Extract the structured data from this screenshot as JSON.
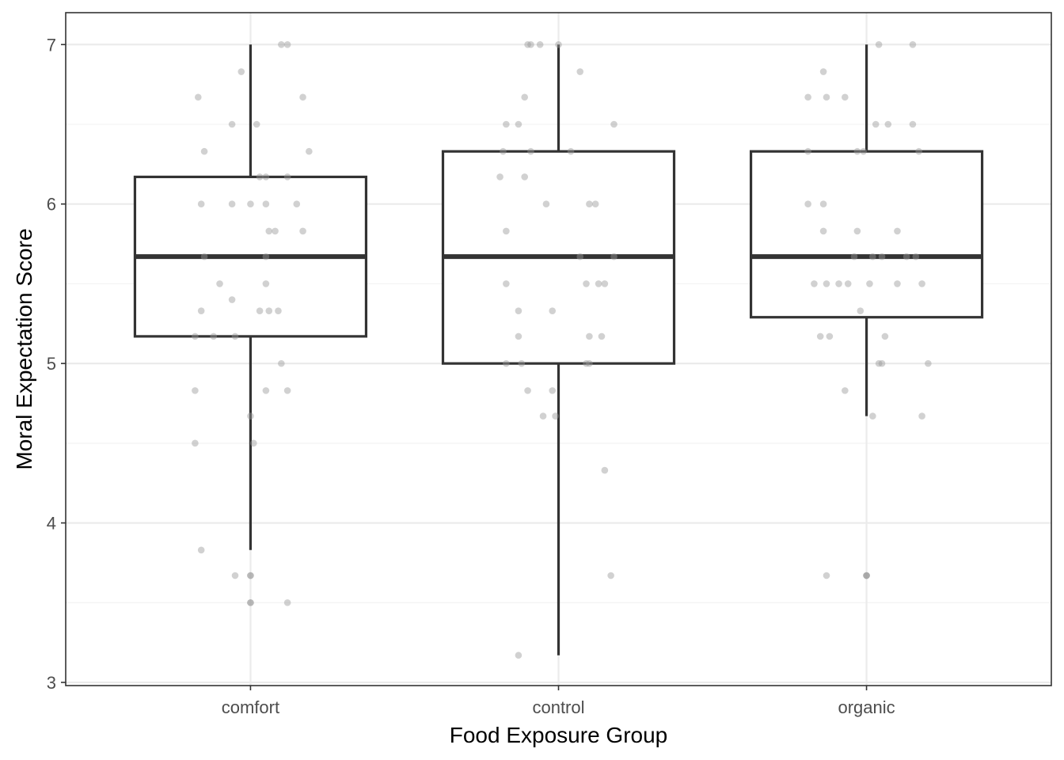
{
  "chart_data": {
    "type": "box",
    "title": "",
    "xlabel": "Food Exposure Group",
    "ylabel": "Moral Expectation Score",
    "categories": [
      "comfort",
      "control",
      "organic"
    ],
    "ylim": [
      2.98,
      7.2
    ],
    "yticks": [
      3,
      4,
      5,
      6,
      7
    ],
    "y_minor_ticks": [
      3.5,
      4.5,
      5.5,
      6.5
    ],
    "grid": true,
    "legend": "none",
    "boxes": [
      {
        "category": "comfort",
        "lower_whisker": 3.83,
        "q1": 5.17,
        "median": 5.67,
        "q3": 6.17,
        "upper_whisker": 7.0
      },
      {
        "category": "control",
        "lower_whisker": 3.17,
        "q1": 5.0,
        "median": 5.67,
        "q3": 6.33,
        "upper_whisker": 7.0
      },
      {
        "category": "organic",
        "lower_whisker": 4.67,
        "q1": 5.29,
        "median": 5.67,
        "q3": 6.33,
        "upper_whisker": 7.0
      }
    ],
    "points": [
      {
        "group": "comfort",
        "jitter": 0.1,
        "y": 7.0
      },
      {
        "group": "comfort",
        "jitter": 0.12,
        "y": 7.0
      },
      {
        "group": "comfort",
        "jitter": -0.03,
        "y": 6.83
      },
      {
        "group": "comfort",
        "jitter": -0.17,
        "y": 6.67
      },
      {
        "group": "comfort",
        "jitter": 0.17,
        "y": 6.67
      },
      {
        "group": "comfort",
        "jitter": -0.06,
        "y": 6.5
      },
      {
        "group": "comfort",
        "jitter": 0.02,
        "y": 6.5
      },
      {
        "group": "comfort",
        "jitter": -0.15,
        "y": 6.33
      },
      {
        "group": "comfort",
        "jitter": 0.19,
        "y": 6.33
      },
      {
        "group": "comfort",
        "jitter": 0.03,
        "y": 6.17
      },
      {
        "group": "comfort",
        "jitter": 0.05,
        "y": 6.17
      },
      {
        "group": "comfort",
        "jitter": 0.12,
        "y": 6.17
      },
      {
        "group": "comfort",
        "jitter": -0.16,
        "y": 6.0
      },
      {
        "group": "comfort",
        "jitter": -0.06,
        "y": 6.0
      },
      {
        "group": "comfort",
        "jitter": 0.0,
        "y": 6.0
      },
      {
        "group": "comfort",
        "jitter": 0.05,
        "y": 6.0
      },
      {
        "group": "comfort",
        "jitter": 0.15,
        "y": 6.0
      },
      {
        "group": "comfort",
        "jitter": 0.06,
        "y": 5.83
      },
      {
        "group": "comfort",
        "jitter": 0.08,
        "y": 5.83
      },
      {
        "group": "comfort",
        "jitter": 0.17,
        "y": 5.83
      },
      {
        "group": "comfort",
        "jitter": -0.15,
        "y": 5.67
      },
      {
        "group": "comfort",
        "jitter": 0.05,
        "y": 5.67
      },
      {
        "group": "comfort",
        "jitter": -0.1,
        "y": 5.5
      },
      {
        "group": "comfort",
        "jitter": 0.05,
        "y": 5.5
      },
      {
        "group": "comfort",
        "jitter": -0.06,
        "y": 5.4
      },
      {
        "group": "comfort",
        "jitter": -0.16,
        "y": 5.33
      },
      {
        "group": "comfort",
        "jitter": 0.03,
        "y": 5.33
      },
      {
        "group": "comfort",
        "jitter": 0.06,
        "y": 5.33
      },
      {
        "group": "comfort",
        "jitter": 0.09,
        "y": 5.33
      },
      {
        "group": "comfort",
        "jitter": -0.18,
        "y": 5.17
      },
      {
        "group": "comfort",
        "jitter": -0.12,
        "y": 5.17
      },
      {
        "group": "comfort",
        "jitter": -0.05,
        "y": 5.17
      },
      {
        "group": "comfort",
        "jitter": 0.1,
        "y": 5.0
      },
      {
        "group": "comfort",
        "jitter": -0.18,
        "y": 4.83
      },
      {
        "group": "comfort",
        "jitter": 0.05,
        "y": 4.83
      },
      {
        "group": "comfort",
        "jitter": 0.12,
        "y": 4.83
      },
      {
        "group": "comfort",
        "jitter": 0.0,
        "y": 4.67
      },
      {
        "group": "comfort",
        "jitter": -0.18,
        "y": 4.5
      },
      {
        "group": "comfort",
        "jitter": 0.01,
        "y": 4.5
      },
      {
        "group": "comfort",
        "jitter": -0.16,
        "y": 3.83
      },
      {
        "group": "comfort",
        "jitter": -0.05,
        "y": 3.67
      },
      {
        "group": "comfort",
        "jitter": 0.0,
        "y": 3.67
      },
      {
        "group": "comfort",
        "jitter": 0.0,
        "y": 3.67
      },
      {
        "group": "comfort",
        "jitter": 0.0,
        "y": 3.5
      },
      {
        "group": "comfort",
        "jitter": 0.0,
        "y": 3.5
      },
      {
        "group": "comfort",
        "jitter": 0.12,
        "y": 3.5
      },
      {
        "group": "control",
        "jitter": -0.1,
        "y": 7.0
      },
      {
        "group": "control",
        "jitter": -0.09,
        "y": 7.0
      },
      {
        "group": "control",
        "jitter": -0.06,
        "y": 7.0
      },
      {
        "group": "control",
        "jitter": 0.0,
        "y": 7.0
      },
      {
        "group": "control",
        "jitter": 0.07,
        "y": 6.83
      },
      {
        "group": "control",
        "jitter": -0.11,
        "y": 6.67
      },
      {
        "group": "control",
        "jitter": -0.17,
        "y": 6.5
      },
      {
        "group": "control",
        "jitter": -0.13,
        "y": 6.5
      },
      {
        "group": "control",
        "jitter": 0.18,
        "y": 6.5
      },
      {
        "group": "control",
        "jitter": -0.18,
        "y": 6.33
      },
      {
        "group": "control",
        "jitter": -0.09,
        "y": 6.33
      },
      {
        "group": "control",
        "jitter": 0.04,
        "y": 6.33
      },
      {
        "group": "control",
        "jitter": -0.19,
        "y": 6.17
      },
      {
        "group": "control",
        "jitter": -0.11,
        "y": 6.17
      },
      {
        "group": "control",
        "jitter": -0.04,
        "y": 6.0
      },
      {
        "group": "control",
        "jitter": 0.1,
        "y": 6.0
      },
      {
        "group": "control",
        "jitter": 0.12,
        "y": 6.0
      },
      {
        "group": "control",
        "jitter": -0.17,
        "y": 5.83
      },
      {
        "group": "control",
        "jitter": 0.07,
        "y": 5.67
      },
      {
        "group": "control",
        "jitter": 0.18,
        "y": 5.67
      },
      {
        "group": "control",
        "jitter": -0.17,
        "y": 5.5
      },
      {
        "group": "control",
        "jitter": 0.09,
        "y": 5.5
      },
      {
        "group": "control",
        "jitter": 0.13,
        "y": 5.5
      },
      {
        "group": "control",
        "jitter": 0.15,
        "y": 5.5
      },
      {
        "group": "control",
        "jitter": -0.13,
        "y": 5.33
      },
      {
        "group": "control",
        "jitter": -0.02,
        "y": 5.33
      },
      {
        "group": "control",
        "jitter": -0.13,
        "y": 5.17
      },
      {
        "group": "control",
        "jitter": 0.1,
        "y": 5.17
      },
      {
        "group": "control",
        "jitter": 0.14,
        "y": 5.17
      },
      {
        "group": "control",
        "jitter": -0.17,
        "y": 5.0
      },
      {
        "group": "control",
        "jitter": -0.12,
        "y": 5.0
      },
      {
        "group": "control",
        "jitter": 0.09,
        "y": 5.0
      },
      {
        "group": "control",
        "jitter": 0.1,
        "y": 5.0
      },
      {
        "group": "control",
        "jitter": -0.1,
        "y": 4.83
      },
      {
        "group": "control",
        "jitter": -0.02,
        "y": 4.83
      },
      {
        "group": "control",
        "jitter": -0.05,
        "y": 4.67
      },
      {
        "group": "control",
        "jitter": -0.01,
        "y": 4.67
      },
      {
        "group": "control",
        "jitter": 0.15,
        "y": 4.33
      },
      {
        "group": "control",
        "jitter": 0.17,
        "y": 3.67
      },
      {
        "group": "control",
        "jitter": -0.13,
        "y": 3.17
      },
      {
        "group": "organic",
        "jitter": 0.04,
        "y": 7.0
      },
      {
        "group": "organic",
        "jitter": 0.15,
        "y": 7.0
      },
      {
        "group": "organic",
        "jitter": -0.14,
        "y": 6.83
      },
      {
        "group": "organic",
        "jitter": -0.19,
        "y": 6.67
      },
      {
        "group": "organic",
        "jitter": -0.13,
        "y": 6.67
      },
      {
        "group": "organic",
        "jitter": -0.07,
        "y": 6.67
      },
      {
        "group": "organic",
        "jitter": 0.03,
        "y": 6.5
      },
      {
        "group": "organic",
        "jitter": 0.07,
        "y": 6.5
      },
      {
        "group": "organic",
        "jitter": 0.15,
        "y": 6.5
      },
      {
        "group": "organic",
        "jitter": -0.19,
        "y": 6.33
      },
      {
        "group": "organic",
        "jitter": -0.03,
        "y": 6.33
      },
      {
        "group": "organic",
        "jitter": -0.01,
        "y": 6.33
      },
      {
        "group": "organic",
        "jitter": 0.17,
        "y": 6.33
      },
      {
        "group": "organic",
        "jitter": -0.19,
        "y": 6.0
      },
      {
        "group": "organic",
        "jitter": -0.14,
        "y": 6.0
      },
      {
        "group": "organic",
        "jitter": -0.14,
        "y": 5.83
      },
      {
        "group": "organic",
        "jitter": -0.03,
        "y": 5.83
      },
      {
        "group": "organic",
        "jitter": 0.1,
        "y": 5.83
      },
      {
        "group": "organic",
        "jitter": -0.04,
        "y": 5.67
      },
      {
        "group": "organic",
        "jitter": 0.02,
        "y": 5.67
      },
      {
        "group": "organic",
        "jitter": 0.05,
        "y": 5.67
      },
      {
        "group": "organic",
        "jitter": 0.13,
        "y": 5.67
      },
      {
        "group": "organic",
        "jitter": 0.16,
        "y": 5.67
      },
      {
        "group": "organic",
        "jitter": -0.17,
        "y": 5.5
      },
      {
        "group": "organic",
        "jitter": -0.13,
        "y": 5.5
      },
      {
        "group": "organic",
        "jitter": -0.09,
        "y": 5.5
      },
      {
        "group": "organic",
        "jitter": -0.06,
        "y": 5.5
      },
      {
        "group": "organic",
        "jitter": 0.01,
        "y": 5.5
      },
      {
        "group": "organic",
        "jitter": 0.1,
        "y": 5.5
      },
      {
        "group": "organic",
        "jitter": 0.18,
        "y": 5.5
      },
      {
        "group": "organic",
        "jitter": -0.02,
        "y": 5.33
      },
      {
        "group": "organic",
        "jitter": -0.15,
        "y": 5.17
      },
      {
        "group": "organic",
        "jitter": -0.12,
        "y": 5.17
      },
      {
        "group": "organic",
        "jitter": 0.06,
        "y": 5.17
      },
      {
        "group": "organic",
        "jitter": 0.04,
        "y": 5.0
      },
      {
        "group": "organic",
        "jitter": 0.05,
        "y": 5.0
      },
      {
        "group": "organic",
        "jitter": 0.2,
        "y": 5.0
      },
      {
        "group": "organic",
        "jitter": -0.07,
        "y": 4.83
      },
      {
        "group": "organic",
        "jitter": 0.02,
        "y": 4.67
      },
      {
        "group": "organic",
        "jitter": 0.18,
        "y": 4.67
      },
      {
        "group": "organic",
        "jitter": -0.13,
        "y": 3.67
      },
      {
        "group": "organic",
        "jitter": 0.0,
        "y": 3.67
      },
      {
        "group": "organic",
        "jitter": 0.0,
        "y": 3.67
      },
      {
        "group": "organic",
        "jitter": 0.0,
        "y": 3.67
      }
    ],
    "colors": {
      "box_line": "#333333",
      "point": "#999999",
      "panel_border": "#333333",
      "grid_major": "#ebebeb",
      "grid_minor": "#f3f3f3",
      "tick_text": "#4d4d4d",
      "title_text": "#000000"
    }
  }
}
